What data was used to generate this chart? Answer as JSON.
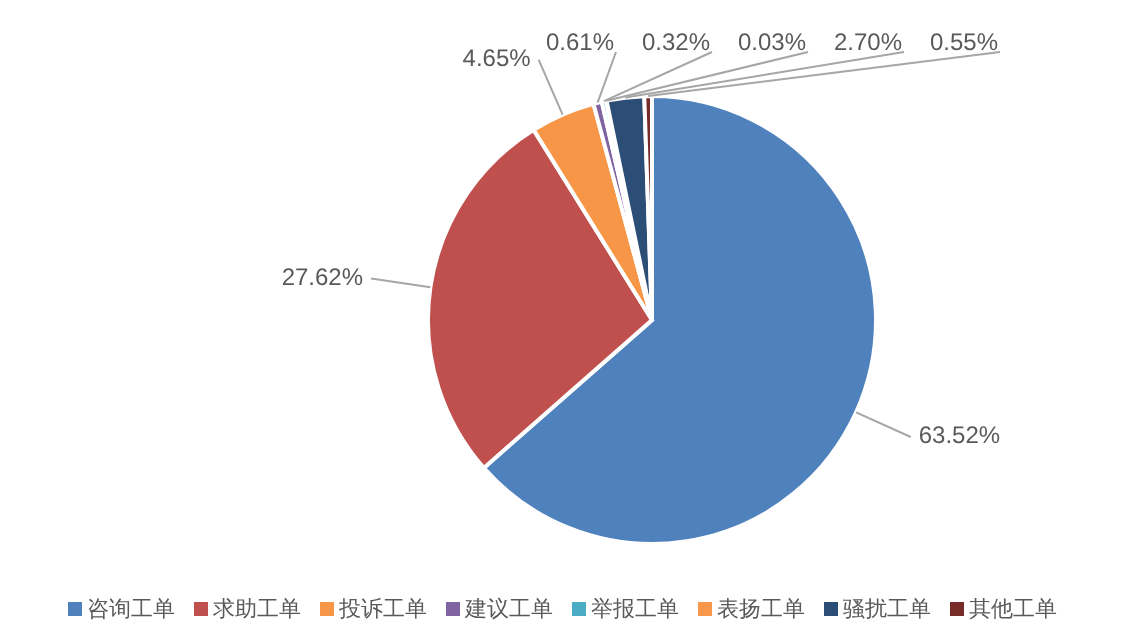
{
  "chart_data": {
    "type": "pie",
    "categories": [
      "咨询工单",
      "求助工单",
      "投诉工单",
      "建议工单",
      "举报工单",
      "表扬工单",
      "骚扰工单",
      "其他工单"
    ],
    "values": [
      63.52,
      27.62,
      4.65,
      0.61,
      0.32,
      0.03,
      2.7,
      0.55
    ],
    "value_labels": [
      "63.52%",
      "27.62%",
      "4.65%",
      "0.61%",
      "0.32%",
      "0.03%",
      "2.70%",
      "0.55%"
    ],
    "colors": [
      "#4f81bd",
      "#c0504d",
      "#f79646",
      "#8064a2",
      "#4bacc6",
      "#f9974a",
      "#2c4d75",
      "#772c2a"
    ],
    "legend": "bottom"
  }
}
